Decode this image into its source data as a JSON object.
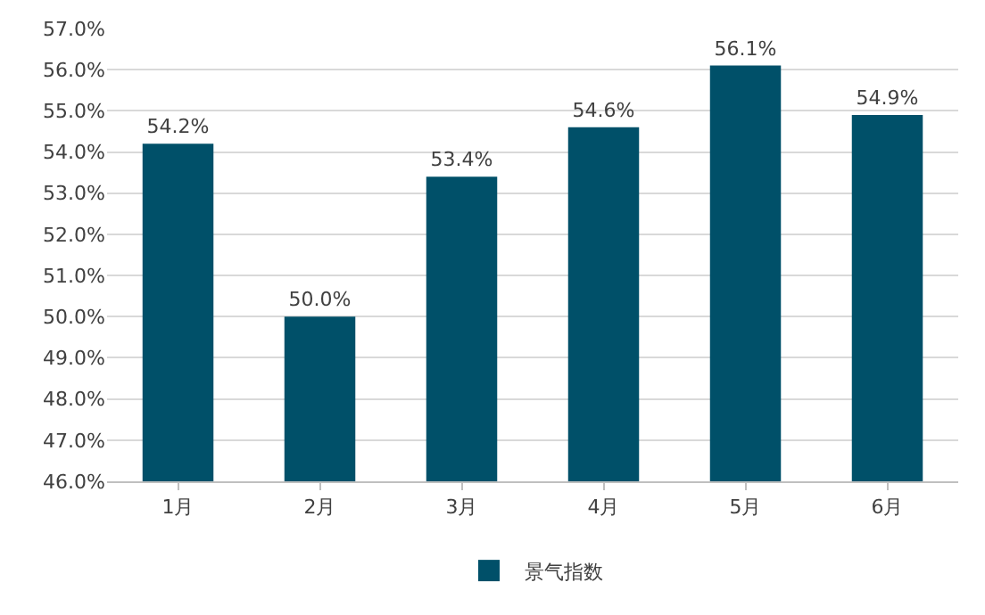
{
  "chart_data": {
    "type": "bar",
    "categories": [
      "1月",
      "2月",
      "3月",
      "4月",
      "5月",
      "6月"
    ],
    "series": [
      {
        "name": "景气指数",
        "color": "#005069",
        "values": [
          54.2,
          50.0,
          53.4,
          54.6,
          56.1,
          54.9
        ],
        "value_labels": [
          "54.2%",
          "50.0%",
          "53.4%",
          "54.6%",
          "56.1%",
          "54.9%"
        ]
      }
    ],
    "ylim": [
      46,
      57
    ],
    "yticks": [
      {
        "value": 46,
        "label": "46.0%"
      },
      {
        "value": 47,
        "label": "47.0%"
      },
      {
        "value": 48,
        "label": "48.0%"
      },
      {
        "value": 49,
        "label": "49.0%"
      },
      {
        "value": 50,
        "label": "50.0%"
      },
      {
        "value": 51,
        "label": "51.0%"
      },
      {
        "value": 52,
        "label": "52.0%"
      },
      {
        "value": 53,
        "label": "53.0%"
      },
      {
        "value": 54,
        "label": "54.0%"
      },
      {
        "value": 55,
        "label": "55.0%"
      },
      {
        "value": 56,
        "label": "56.0%"
      },
      {
        "value": 57,
        "label": "57.0%"
      }
    ],
    "grid": "y",
    "legend": "bottom"
  }
}
